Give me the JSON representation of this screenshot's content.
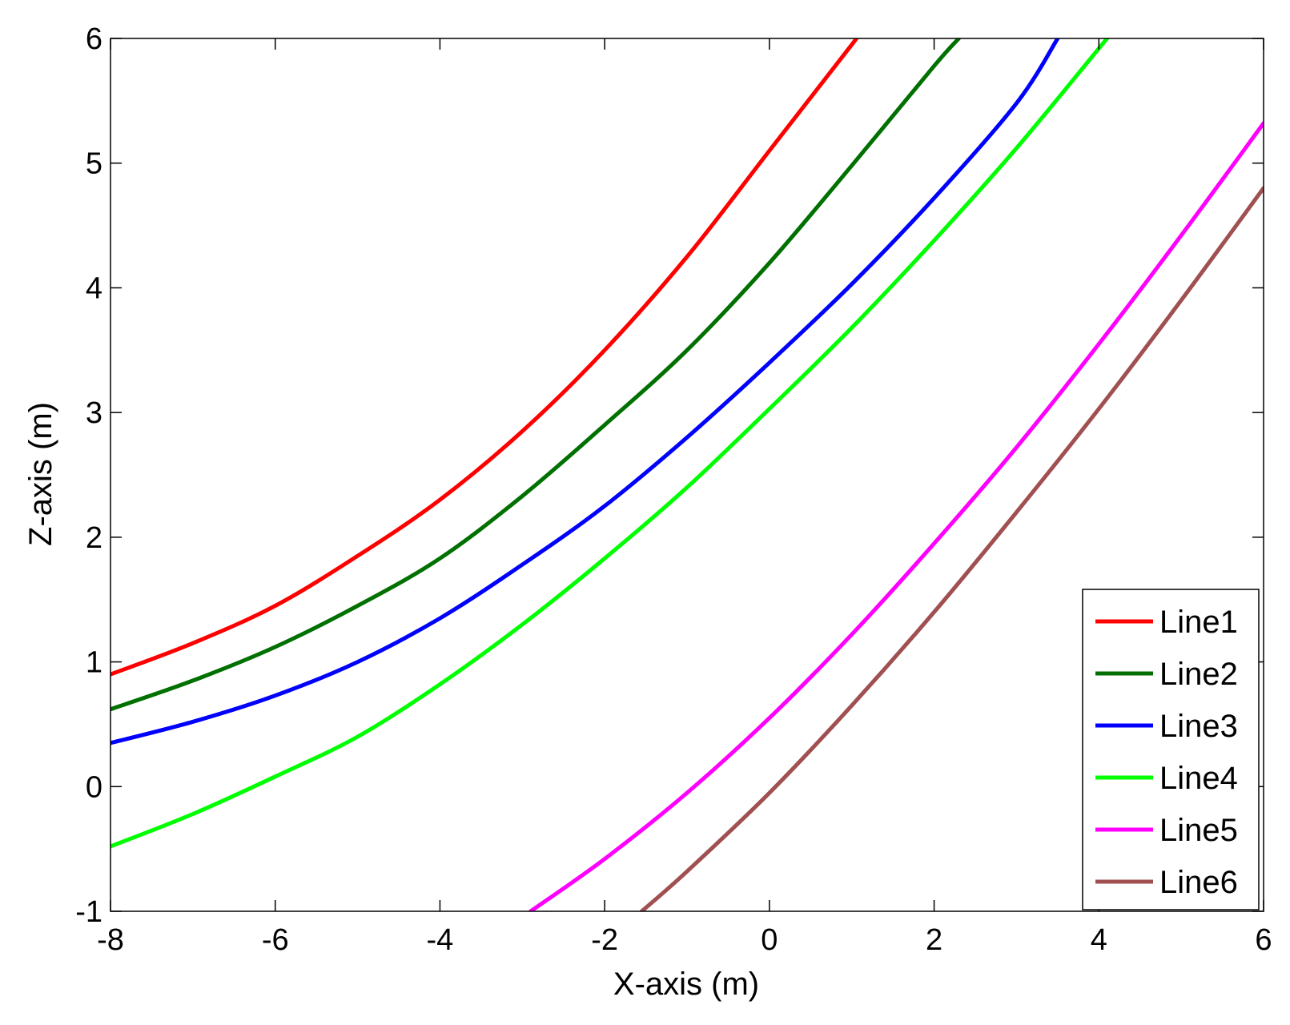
{
  "chart_data": {
    "type": "line",
    "xlabel": "X-axis (m)",
    "ylabel": "Z-axis (m)",
    "xlim": [
      -8,
      6
    ],
    "ylim": [
      -1,
      6
    ],
    "xticks": [
      -8,
      -6,
      -4,
      -2,
      0,
      2,
      4,
      6
    ],
    "yticks": [
      -1,
      0,
      1,
      2,
      3,
      4,
      5,
      6
    ],
    "grid": false,
    "legend_position": "bottom-right",
    "series": [
      {
        "name": "Line1",
        "color": "#ff0000",
        "x": [
          -8,
          -7,
          -6,
          -5,
          -4,
          -3,
          -2,
          -1,
          0,
          1,
          1.05
        ],
        "y": [
          0.9,
          1.15,
          1.45,
          1.85,
          2.3,
          2.85,
          3.5,
          4.25,
          5.1,
          5.95,
          6.0
        ]
      },
      {
        "name": "Line2",
        "color": "#007000",
        "x": [
          -8,
          -7,
          -6,
          -5,
          -4,
          -3,
          -2,
          -1,
          0,
          1,
          2,
          2.3
        ],
        "y": [
          0.62,
          0.85,
          1.12,
          1.45,
          1.83,
          2.33,
          2.9,
          3.5,
          4.2,
          4.98,
          5.78,
          6.0
        ]
      },
      {
        "name": "Line3",
        "color": "#0000ff",
        "x": [
          -8,
          -7,
          -6,
          -5,
          -4,
          -3,
          -2,
          -1,
          0,
          1,
          2,
          3,
          3.5
        ],
        "y": [
          0.35,
          0.52,
          0.73,
          1.0,
          1.35,
          1.78,
          2.25,
          2.8,
          3.4,
          4.03,
          4.72,
          5.48,
          6.0
        ]
      },
      {
        "name": "Line4",
        "color": "#00ff00",
        "x": [
          -8,
          -7,
          -6,
          -5,
          -4,
          -3,
          -2,
          -1,
          0,
          1,
          2,
          3,
          4,
          4.1
        ],
        "y": [
          -0.48,
          -0.22,
          0.08,
          0.4,
          0.82,
          1.3,
          1.83,
          2.4,
          3.03,
          3.68,
          4.38,
          5.12,
          5.92,
          6.0
        ]
      },
      {
        "name": "Line5",
        "color": "#ff00ff",
        "x": [
          -2.9,
          -2,
          -1,
          0,
          1,
          2,
          3,
          4,
          5,
          6
        ],
        "y": [
          -1.0,
          -0.58,
          -0.05,
          0.55,
          1.22,
          1.95,
          2.72,
          3.55,
          4.42,
          5.32
        ]
      },
      {
        "name": "Line6",
        "color": "#a05050",
        "x": [
          -1.55,
          -1,
          0,
          1,
          2,
          3,
          4,
          5,
          6
        ],
        "y": [
          -1.0,
          -0.68,
          -0.05,
          0.65,
          1.4,
          2.2,
          3.03,
          3.9,
          4.8
        ]
      }
    ]
  }
}
